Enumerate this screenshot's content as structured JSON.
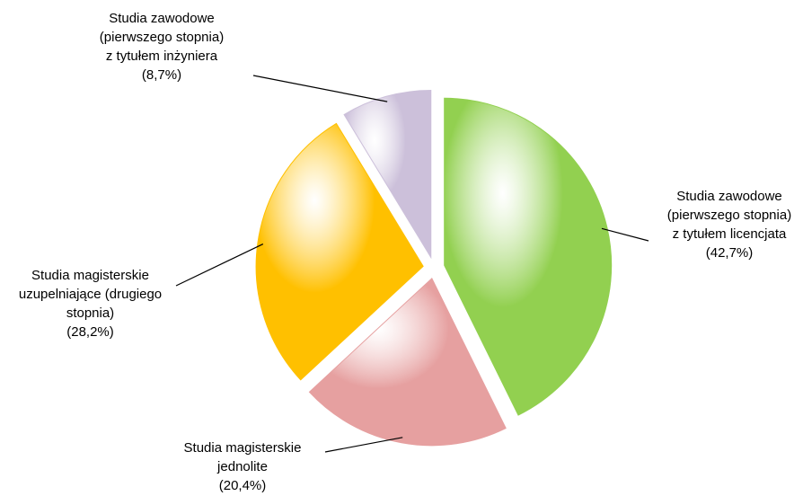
{
  "chart_data": {
    "type": "pie",
    "categories": [
      "Studia zawodowe (pierwszego stopnia) z tytułem licencjata",
      "Studia magisterskie jednolite",
      "Studia magisterskie uzupelniające (drugiego stopnia)",
      "Studia zawodowe (pierwszego stopnia) z tytułem inżyniera"
    ],
    "values": [
      42.7,
      20.4,
      28.2,
      8.7
    ],
    "value_labels": [
      "(42,7%)",
      "(20,4%)",
      "(28,2%)",
      "(8,7%)"
    ],
    "colors": [
      "#92d050",
      "#e6a0a0",
      "#ffc000",
      "#ccc0da"
    ]
  }
}
